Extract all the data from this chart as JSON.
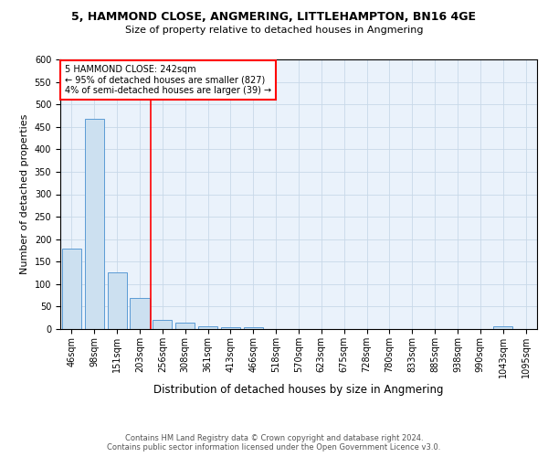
{
  "title": "5, HAMMOND CLOSE, ANGMERING, LITTLEHAMPTON, BN16 4GE",
  "subtitle": "Size of property relative to detached houses in Angmering",
  "xlabel": "Distribution of detached houses by size in Angmering",
  "ylabel": "Number of detached properties",
  "bar_labels": [
    "46sqm",
    "98sqm",
    "151sqm",
    "203sqm",
    "256sqm",
    "308sqm",
    "361sqm",
    "413sqm",
    "466sqm",
    "518sqm",
    "570sqm",
    "623sqm",
    "675sqm",
    "728sqm",
    "780sqm",
    "833sqm",
    "885sqm",
    "938sqm",
    "990sqm",
    "1043sqm",
    "1095sqm"
  ],
  "bar_values": [
    180,
    468,
    127,
    70,
    20,
    15,
    7,
    5,
    5,
    0,
    0,
    0,
    0,
    0,
    0,
    0,
    0,
    0,
    0,
    6,
    0
  ],
  "bar_color": "#cce0f0",
  "bar_edge_color": "#5b9bd5",
  "red_line_index": 3.5,
  "annotation_title": "5 HAMMOND CLOSE: 242sqm",
  "annotation_line1": "← 95% of detached houses are smaller (827)",
  "annotation_line2": "4% of semi-detached houses are larger (39) →",
  "annotation_box_color": "white",
  "annotation_box_edge": "red",
  "ylim": [
    0,
    600
  ],
  "yticks": [
    0,
    50,
    100,
    150,
    200,
    250,
    300,
    350,
    400,
    450,
    500,
    550,
    600
  ],
  "footer_line1": "Contains HM Land Registry data © Crown copyright and database right 2024.",
  "footer_line2": "Contains public sector information licensed under the Open Government Licence v3.0.",
  "bg_color": "#eaf2fb",
  "grid_color": "#c8d8e8",
  "title_fontsize": 9.0,
  "subtitle_fontsize": 8.0,
  "ylabel_fontsize": 8.0,
  "xlabel_fontsize": 8.5,
  "tick_fontsize": 7.0,
  "annotation_fontsize": 7.0,
  "footer_fontsize": 6.0
}
